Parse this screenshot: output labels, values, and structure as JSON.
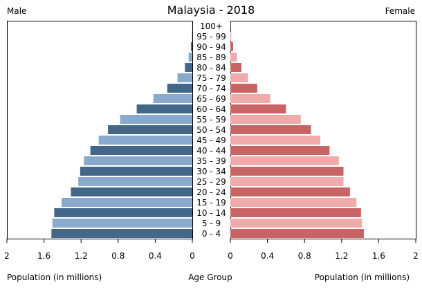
{
  "chart_data": {
    "type": "bar",
    "title": "Malaysia - 2018",
    "left_label": "Male",
    "right_label": "Female",
    "center_label": "Age Group",
    "xlabel_left": "Population (in millions)",
    "xlabel_right": "Population (in millions)",
    "xlim": [
      0,
      2
    ],
    "ticks": [
      "2",
      "1.6",
      "1.2",
      "0.8",
      "0.4",
      "0",
      "0",
      "0.4",
      "0.8",
      "1.2",
      "1.6",
      "2"
    ],
    "tick_values": [
      2,
      1.6,
      1.2,
      0.8,
      0.4,
      0
    ],
    "categories": [
      "0 - 4",
      "5 - 9",
      "10 - 14",
      "15 - 19",
      "20 - 24",
      "25 - 29",
      "30 - 34",
      "35 - 39",
      "40 - 44",
      "45 - 49",
      "50 - 54",
      "55 - 59",
      "60 - 64",
      "65 - 69",
      "70 - 74",
      "75 - 79",
      "80 - 84",
      "85 - 89",
      "90 - 94",
      "95 - 99",
      "100+"
    ],
    "series": [
      {
        "name": "Male",
        "values": [
          1.52,
          1.51,
          1.49,
          1.41,
          1.31,
          1.23,
          1.21,
          1.17,
          1.1,
          1.01,
          0.91,
          0.78,
          0.6,
          0.42,
          0.27,
          0.16,
          0.08,
          0.04,
          0.015,
          0.005,
          0.001
        ]
      },
      {
        "name": "Female",
        "values": [
          1.44,
          1.42,
          1.41,
          1.36,
          1.29,
          1.22,
          1.22,
          1.17,
          1.07,
          0.97,
          0.87,
          0.76,
          0.6,
          0.43,
          0.29,
          0.19,
          0.12,
          0.07,
          0.03,
          0.01,
          0.003
        ]
      }
    ],
    "colors": {
      "male_dark": "#436789",
      "male_light": "#8aaacd",
      "female_dark": "#c86464",
      "female_light": "#f0aaaa"
    },
    "grid": false,
    "legend": "none"
  }
}
